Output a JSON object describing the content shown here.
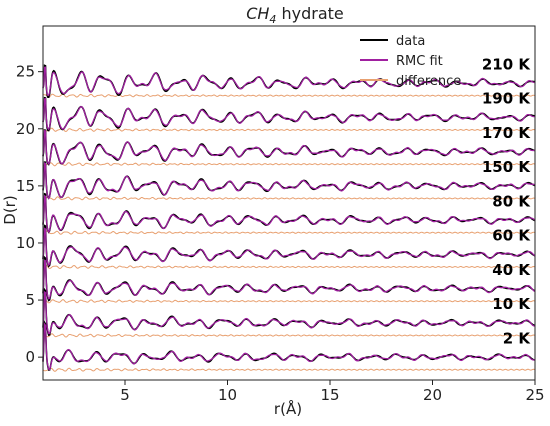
{
  "chart_data": {
    "type": "line",
    "title_main": "CH",
    "title_sub": "4",
    "title_rest": " hydrate",
    "xlabel": "r(Å)",
    "ylabel": "D(r)",
    "xlim": [
      1,
      25
    ],
    "ylim": [
      -2,
      29
    ],
    "xticks": [
      5,
      10,
      15,
      20,
      25
    ],
    "yticks": [
      0,
      5,
      10,
      15,
      20,
      25
    ],
    "grid": false,
    "legend_position": "top-right",
    "series": [
      {
        "name": "data",
        "color": "#000000"
      },
      {
        "name": "RMC fit",
        "color": "#a020a0"
      },
      {
        "name": "difference",
        "color": "#e8a070"
      }
    ],
    "temperatures": [
      {
        "label": "210 K",
        "offset": 24
      },
      {
        "label": "190 K",
        "offset": 21
      },
      {
        "label": "170 K",
        "offset": 18
      },
      {
        "label": "150 K",
        "offset": 15
      },
      {
        "label": "80 K",
        "offset": 12
      },
      {
        "label": "60 K",
        "offset": 9
      },
      {
        "label": "40 K",
        "offset": 6
      },
      {
        "label": "10 K",
        "offset": 3
      },
      {
        "label": "2 K",
        "offset": 0
      }
    ],
    "difference_offset": -1.1
  }
}
